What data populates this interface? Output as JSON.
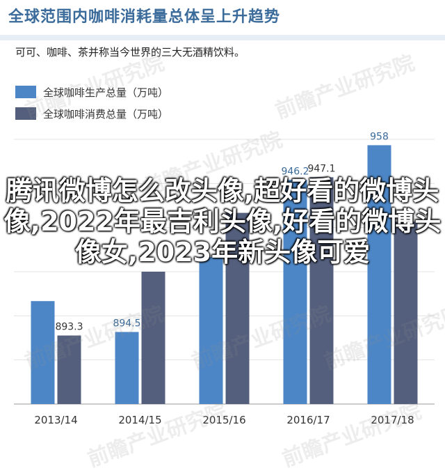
{
  "header": {
    "title": "全球范围内咖啡消耗量总体呈上升趋势",
    "subtitle": "可可、咖啡、茶并称当今世界的三大无酒精饮料。"
  },
  "watermark": "前瞻产业研究院",
  "overlay_text": "腾讯微博怎么改头像,超好看的微博头像,2022年最吉利头像,好看的微博头像女,2023年新头像可爱",
  "colors": {
    "production": "#4c86c6",
    "consumption": "#545f7d",
    "title": "#3a6b9a",
    "grid": "#e3e3e3"
  },
  "chart_data": {
    "type": "bar",
    "categories": [
      "2013/14",
      "2014/15",
      "2015/16",
      "2016/17",
      "2017/18"
    ],
    "series": [
      {
        "name": "全球咖啡生产总量（万吨）",
        "values": [
          null,
          894.5,
          null,
          946.2,
          958
        ]
      },
      {
        "name": "全球咖啡消费总量（万吨）",
        "values": [
          893.3,
          null,
          null,
          947.1,
          null
        ]
      }
    ],
    "estimated_values": {
      "production": [
        905,
        894.5,
        920,
        946.2,
        958
      ],
      "consumption": [
        893.3,
        915,
        935,
        947.1,
        932
      ]
    },
    "ylim": [
      870,
      960
    ],
    "grid": true,
    "legend_position": "top-left"
  }
}
